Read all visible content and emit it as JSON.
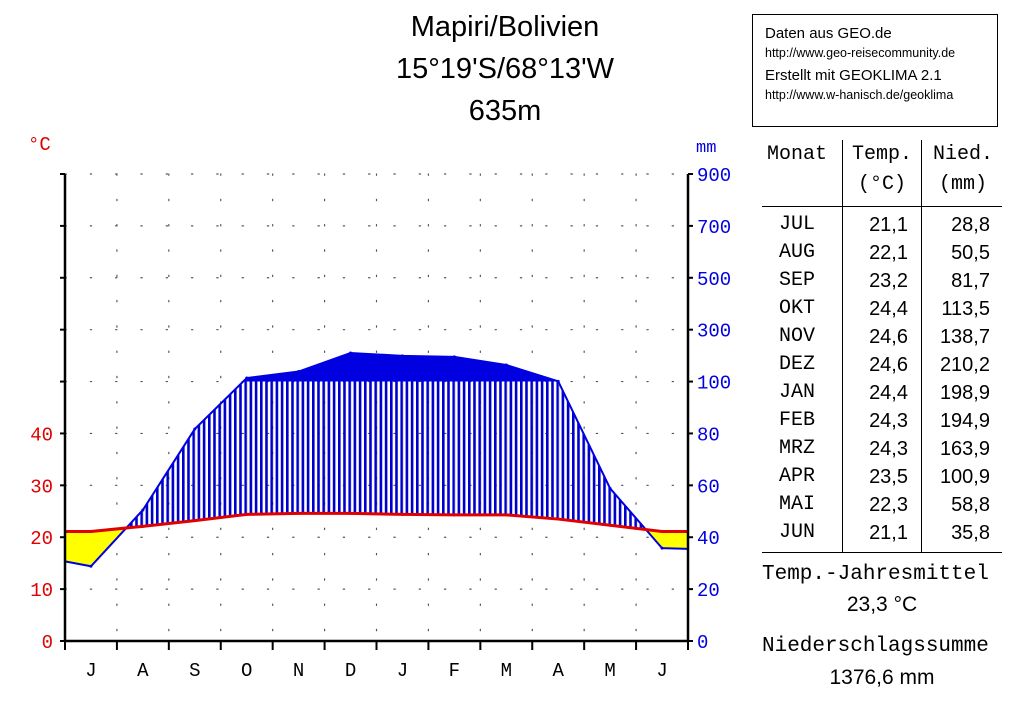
{
  "header": {
    "station": "Mapiri/Bolivien",
    "coords": "15°19'S/68°13'W",
    "elevation": "635m"
  },
  "source": {
    "line1": "Daten aus GEO.de",
    "line2": "http://www.geo-reisecommunity.de",
    "line3": "Erstellt mit GEOKLIMA 2.1",
    "line4": "http://www.w-hanisch.de/geoklima"
  },
  "colors": {
    "temp": "#e00000",
    "precip": "#0000e0",
    "humid": "#0000cc",
    "arid": "#ffff00",
    "axis": "#000000"
  },
  "chart_data": {
    "type": "line",
    "title": "Mapiri/Bolivien",
    "months": [
      "J",
      "A",
      "S",
      "O",
      "N",
      "D",
      "J",
      "F",
      "M",
      "A",
      "M",
      "J"
    ],
    "series": [
      {
        "name": "Temperatur",
        "unit": "°C",
        "values": [
          21.1,
          22.1,
          23.2,
          24.4,
          24.6,
          24.6,
          24.4,
          24.3,
          24.3,
          23.5,
          22.3,
          21.1
        ]
      },
      {
        "name": "Niederschlag",
        "unit": "mm",
        "values": [
          28.8,
          50.5,
          81.7,
          113.5,
          138.7,
          210.2,
          198.9,
          194.9,
          163.9,
          100.9,
          58.8,
          35.8
        ]
      }
    ],
    "left_axis": {
      "label": "°C",
      "ticks": [
        "0",
        "10",
        "20",
        "30",
        "40"
      ],
      "ylim": [
        0,
        90
      ]
    },
    "right_axis": {
      "label": "mm",
      "ticks": [
        "0",
        "20",
        "40",
        "60",
        "80",
        "100",
        "300",
        "500",
        "700",
        "900"
      ],
      "ylim": [
        0,
        900
      ]
    },
    "grid": true
  },
  "table": {
    "headers": {
      "monat": "Monat",
      "temp": "Temp.",
      "temp_unit": "(°C)",
      "nied": "Nied.",
      "nied_unit": "(mm)"
    },
    "rows": [
      {
        "month": "JUL",
        "temp": "21,1",
        "precip": "28,8"
      },
      {
        "month": "AUG",
        "temp": "22,1",
        "precip": "50,5"
      },
      {
        "month": "SEP",
        "temp": "23,2",
        "precip": "81,7"
      },
      {
        "month": "OKT",
        "temp": "24,4",
        "precip": "113,5"
      },
      {
        "month": "NOV",
        "temp": "24,6",
        "precip": "138,7"
      },
      {
        "month": "DEZ",
        "temp": "24,6",
        "precip": "210,2"
      },
      {
        "month": "JAN",
        "temp": "24,4",
        "precip": "198,9"
      },
      {
        "month": "FEB",
        "temp": "24,3",
        "precip": "194,9"
      },
      {
        "month": "MRZ",
        "temp": "24,3",
        "precip": "163,9"
      },
      {
        "month": "APR",
        "temp": "23,5",
        "precip": "100,9"
      },
      {
        "month": "MAI",
        "temp": "22,3",
        "precip": "58,8"
      },
      {
        "month": "JUN",
        "temp": "21,1",
        "precip": "35,8"
      }
    ]
  },
  "summary": {
    "temp_label": "Temp.-Jahresmittel",
    "temp_value": "23,3 °C",
    "precip_label": "Niederschlagssumme",
    "precip_value": "1376,6 mm"
  }
}
